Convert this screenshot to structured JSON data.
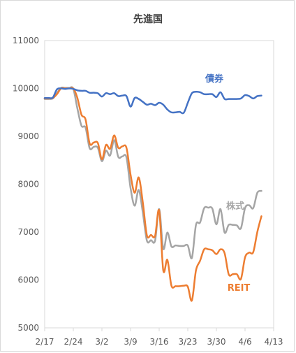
{
  "chart_data": {
    "type": "line",
    "title": "先進国",
    "xlabel": "",
    "ylabel": "",
    "ylim": [
      5000,
      11000
    ],
    "yticks": [
      5000,
      6000,
      7000,
      8000,
      9000,
      10000,
      11000
    ],
    "xlim": [
      "2020-02-17",
      "2020-04-13"
    ],
    "xticks": [
      {
        "date": "2020-02-17",
        "label": "2/17"
      },
      {
        "date": "2020-02-24",
        "label": "2/24"
      },
      {
        "date": "2020-03-02",
        "label": "3/2"
      },
      {
        "date": "2020-03-09",
        "label": "3/9"
      },
      {
        "date": "2020-03-16",
        "label": "3/16"
      },
      {
        "date": "2020-03-23",
        "label": "3/23"
      },
      {
        "date": "2020-03-30",
        "label": "3/30"
      },
      {
        "date": "2020-04-06",
        "label": "4/6"
      },
      {
        "date": "2020-04-13",
        "label": "4/13"
      }
    ],
    "grid": false,
    "legend": "none",
    "series": [
      {
        "name": "債券",
        "color": "#4472c4",
        "points": [
          [
            "2020-02-17",
            9800
          ],
          [
            "2020-02-18",
            9800
          ],
          [
            "2020-02-19",
            9810
          ],
          [
            "2020-02-20",
            9980
          ],
          [
            "2020-02-21",
            10000
          ],
          [
            "2020-02-22",
            9990
          ],
          [
            "2020-02-23",
            10000
          ],
          [
            "2020-02-24",
            9990
          ],
          [
            "2020-02-25",
            9960
          ],
          [
            "2020-02-26",
            9950
          ],
          [
            "2020-02-27",
            9950
          ],
          [
            "2020-02-28",
            9910
          ],
          [
            "2020-02-29",
            9910
          ],
          [
            "2020-03-01",
            9900
          ],
          [
            "2020-03-02",
            9830
          ],
          [
            "2020-03-03",
            9900
          ],
          [
            "2020-03-04",
            9880
          ],
          [
            "2020-03-05",
            9900
          ],
          [
            "2020-03-06",
            9840
          ],
          [
            "2020-03-07",
            9850
          ],
          [
            "2020-03-08",
            9840
          ],
          [
            "2020-03-09",
            9620
          ],
          [
            "2020-03-10",
            9800
          ],
          [
            "2020-03-11",
            9780
          ],
          [
            "2020-03-12",
            9720
          ],
          [
            "2020-03-13",
            9660
          ],
          [
            "2020-03-14",
            9680
          ],
          [
            "2020-03-15",
            9650
          ],
          [
            "2020-03-16",
            9700
          ],
          [
            "2020-03-17",
            9660
          ],
          [
            "2020-03-18",
            9560
          ],
          [
            "2020-03-19",
            9500
          ],
          [
            "2020-03-20",
            9500
          ],
          [
            "2020-03-21",
            9510
          ],
          [
            "2020-03-22",
            9490
          ],
          [
            "2020-03-23",
            9700
          ],
          [
            "2020-03-24",
            9900
          ],
          [
            "2020-03-25",
            9930
          ],
          [
            "2020-03-26",
            9920
          ],
          [
            "2020-03-27",
            9880
          ],
          [
            "2020-03-28",
            9880
          ],
          [
            "2020-03-29",
            9880
          ],
          [
            "2020-03-30",
            9820
          ],
          [
            "2020-03-31",
            9920
          ],
          [
            "2020-04-01",
            9780
          ],
          [
            "2020-04-02",
            9780
          ],
          [
            "2020-04-03",
            9780
          ],
          [
            "2020-04-04",
            9780
          ],
          [
            "2020-04-05",
            9790
          ],
          [
            "2020-04-06",
            9860
          ],
          [
            "2020-04-07",
            9840
          ],
          [
            "2020-04-08",
            9790
          ],
          [
            "2020-04-09",
            9840
          ],
          [
            "2020-04-10",
            9850
          ]
        ]
      },
      {
        "name": "株式",
        "color": "#a5a5a5",
        "points": [
          [
            "2020-02-17",
            9780
          ],
          [
            "2020-02-18",
            9780
          ],
          [
            "2020-02-19",
            9790
          ],
          [
            "2020-02-20",
            9900
          ],
          [
            "2020-02-21",
            10010
          ],
          [
            "2020-02-22",
            10010
          ],
          [
            "2020-02-23",
            10010
          ],
          [
            "2020-02-24",
            9990
          ],
          [
            "2020-02-25",
            9580
          ],
          [
            "2020-02-26",
            9220
          ],
          [
            "2020-02-27",
            9180
          ],
          [
            "2020-02-28",
            8750
          ],
          [
            "2020-02-29",
            8780
          ],
          [
            "2020-03-01",
            8760
          ],
          [
            "2020-03-02",
            8480
          ],
          [
            "2020-03-03",
            8700
          ],
          [
            "2020-03-04",
            8600
          ],
          [
            "2020-03-05",
            8920
          ],
          [
            "2020-03-06",
            8570
          ],
          [
            "2020-03-07",
            8580
          ],
          [
            "2020-03-08",
            8560
          ],
          [
            "2020-03-09",
            7920
          ],
          [
            "2020-03-10",
            7550
          ],
          [
            "2020-03-11",
            7880
          ],
          [
            "2020-03-12",
            7410
          ],
          [
            "2020-03-13",
            6820
          ],
          [
            "2020-03-14",
            6830
          ],
          [
            "2020-03-15",
            6820
          ],
          [
            "2020-03-16",
            7480
          ],
          [
            "2020-03-17",
            6650
          ],
          [
            "2020-03-18",
            6990
          ],
          [
            "2020-03-19",
            6700
          ],
          [
            "2020-03-20",
            6720
          ],
          [
            "2020-03-21",
            6710
          ],
          [
            "2020-03-22",
            6710
          ],
          [
            "2020-03-23",
            6720
          ],
          [
            "2020-03-24",
            6460
          ],
          [
            "2020-03-25",
            7150
          ],
          [
            "2020-03-26",
            7200
          ],
          [
            "2020-03-27",
            7500
          ],
          [
            "2020-03-28",
            7510
          ],
          [
            "2020-03-29",
            7490
          ],
          [
            "2020-03-30",
            7160
          ],
          [
            "2020-03-31",
            7480
          ],
          [
            "2020-04-01",
            6990
          ],
          [
            "2020-04-02",
            7150
          ],
          [
            "2020-04-03",
            7150
          ],
          [
            "2020-04-04",
            7140
          ],
          [
            "2020-04-05",
            7080
          ],
          [
            "2020-04-06",
            7500
          ],
          [
            "2020-04-07",
            7560
          ],
          [
            "2020-04-08",
            7500
          ],
          [
            "2020-04-09",
            7820
          ],
          [
            "2020-04-10",
            7860
          ]
        ]
      },
      {
        "name": "REIT",
        "color": "#ed7d31",
        "points": [
          [
            "2020-02-17",
            9790
          ],
          [
            "2020-02-18",
            9790
          ],
          [
            "2020-02-19",
            9800
          ],
          [
            "2020-02-20",
            9880
          ],
          [
            "2020-02-21",
            10000
          ],
          [
            "2020-02-22",
            10000
          ],
          [
            "2020-02-23",
            10000
          ],
          [
            "2020-02-24",
            10000
          ],
          [
            "2020-02-25",
            9800
          ],
          [
            "2020-02-26",
            9450
          ],
          [
            "2020-02-27",
            9350
          ],
          [
            "2020-02-28",
            8850
          ],
          [
            "2020-02-29",
            8870
          ],
          [
            "2020-03-01",
            8860
          ],
          [
            "2020-03-02",
            8520
          ],
          [
            "2020-03-03",
            8820
          ],
          [
            "2020-03-04",
            8740
          ],
          [
            "2020-03-05",
            9020
          ],
          [
            "2020-03-06",
            8760
          ],
          [
            "2020-03-07",
            8790
          ],
          [
            "2020-03-08",
            8760
          ],
          [
            "2020-03-09",
            8200
          ],
          [
            "2020-03-10",
            7820
          ],
          [
            "2020-03-11",
            8140
          ],
          [
            "2020-03-12",
            7620
          ],
          [
            "2020-03-13",
            6930
          ],
          [
            "2020-03-14",
            6940
          ],
          [
            "2020-03-15",
            6920
          ],
          [
            "2020-03-16",
            7450
          ],
          [
            "2020-03-17",
            6200
          ],
          [
            "2020-03-18",
            6420
          ],
          [
            "2020-03-19",
            5880
          ],
          [
            "2020-03-20",
            5870
          ],
          [
            "2020-03-21",
            5870
          ],
          [
            "2020-03-22",
            5880
          ],
          [
            "2020-03-23",
            5860
          ],
          [
            "2020-03-24",
            5570
          ],
          [
            "2020-03-25",
            6200
          ],
          [
            "2020-03-26",
            6400
          ],
          [
            "2020-03-27",
            6640
          ],
          [
            "2020-03-28",
            6640
          ],
          [
            "2020-03-29",
            6620
          ],
          [
            "2020-03-30",
            6540
          ],
          [
            "2020-03-31",
            6640
          ],
          [
            "2020-04-01",
            6560
          ],
          [
            "2020-04-02",
            6120
          ],
          [
            "2020-04-03",
            6120
          ],
          [
            "2020-04-04",
            6120
          ],
          [
            "2020-04-05",
            6020
          ],
          [
            "2020-04-06",
            6470
          ],
          [
            "2020-04-07",
            6570
          ],
          [
            "2020-04-08",
            6580
          ],
          [
            "2020-04-09",
            7000
          ],
          [
            "2020-04-10",
            7330
          ]
        ]
      }
    ]
  }
}
